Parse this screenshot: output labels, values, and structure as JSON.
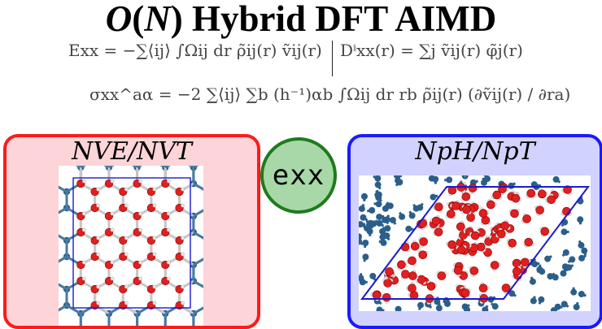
{
  "title": {
    "prefix": "O",
    "paren_open": "(",
    "n": "N",
    "paren_close": ")",
    "rest": " Hybrid DFT AIMD"
  },
  "equations": {
    "energy": "Exx = −∑⟨ij⟩ ∫Ωij dr ρ̃ij(r) ṽij(r)",
    "potential": "Dⁱxx(r) = ∑j ṽij(r) φ̃j(r)",
    "stress": "σxx^aα = −2 ∑⟨ij⟩ ∑b (h⁻¹)αb ∫Ωij dr rb ρ̃ij(r) (∂ṽij(r) / ∂ra)"
  },
  "panels": {
    "left_label": "NVE/NVT",
    "center_label": "exx",
    "right_label": "NpH/NpT"
  },
  "colors": {
    "left_border": "#ff1a1a",
    "left_fill": "#fdd4d8",
    "right_border": "#1a1aff",
    "right_fill": "#d2d2ff",
    "center_border": "#1e7a1e",
    "center_fill": "#a8d8a8",
    "oxygen": "#e02020",
    "hydrogen": "#e8e8e8",
    "periodic_image": "#2b5f8a",
    "cell_box": "#1a1ad0"
  }
}
